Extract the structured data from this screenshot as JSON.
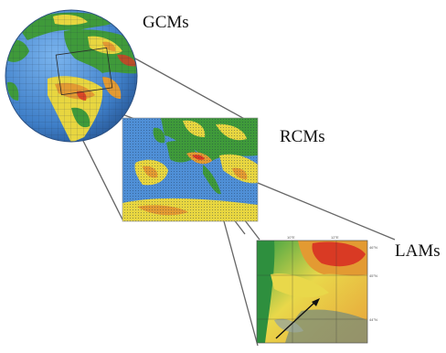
{
  "labels": {
    "global": "GCMs",
    "regional": "RCMs",
    "local": "LAMs"
  },
  "colors": {
    "ocean": "#4f8fd6",
    "land_green": "#3f9a3a",
    "land_yellow": "#e8d640",
    "land_orange": "#e39a32",
    "relief_red": "#d93a24",
    "connector": "#666666"
  },
  "lam_ticks": {
    "top": [
      "10°E",
      "12°E"
    ],
    "right": [
      "46°N",
      "45°N",
      "44°N"
    ]
  }
}
